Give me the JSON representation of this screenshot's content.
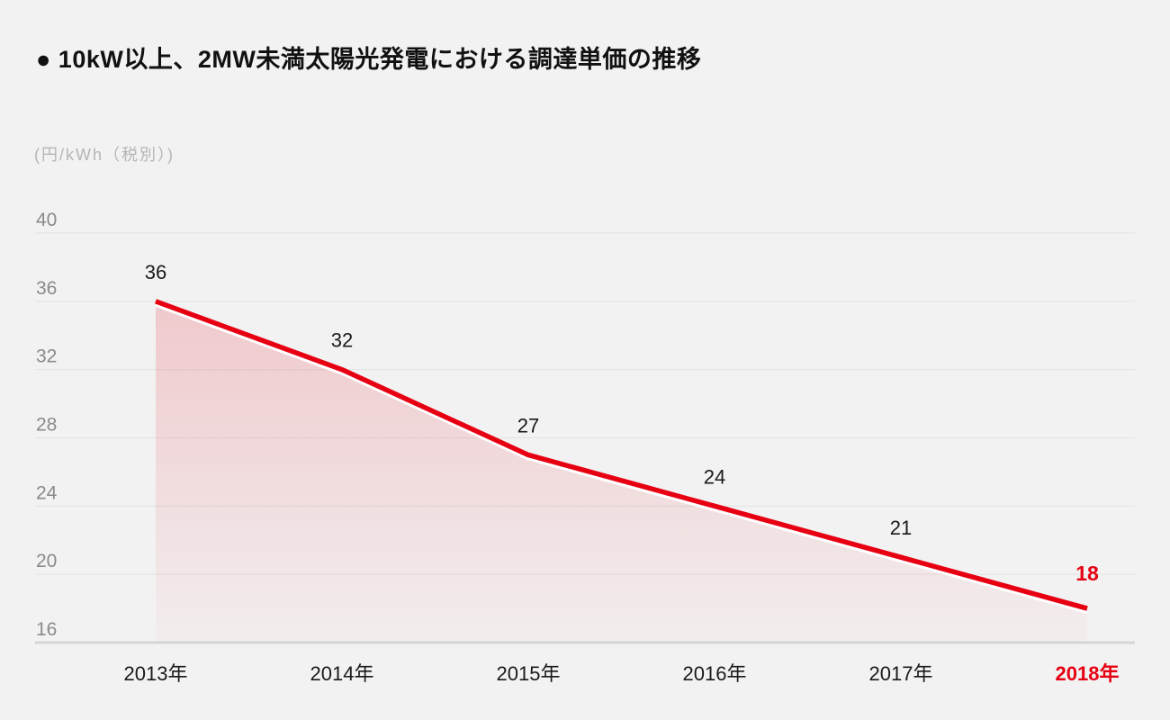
{
  "chart_data": {
    "type": "area",
    "title": "● 10kW以上、2MW未満太陽光発電における調達単価の推移",
    "unit_label": "(円/kWh（税別）)",
    "xlabel": "",
    "ylabel": "円/kWh（税別）",
    "categories": [
      "2013年",
      "2014年",
      "2015年",
      "2016年",
      "2017年",
      "2018年"
    ],
    "values": [
      36,
      32,
      27,
      24,
      21,
      18
    ],
    "yticks": [
      40,
      36,
      32,
      28,
      24,
      20,
      16
    ],
    "ylim": [
      16,
      40
    ],
    "grid": true,
    "legend": false,
    "highlight_index": 5,
    "highlight_category": "2018年",
    "highlight_value": 18,
    "colors": {
      "background": "#f2f2f2",
      "title_text": "#111111",
      "unit_text": "#b5b5b5",
      "tick_text": "#8a8a8a",
      "category_text": "#1a1a1a",
      "value_label_text": "#1a1a1a",
      "accent_red": "#e60012",
      "gridline": "#e2e2e2",
      "axis_line": "#d6d6d6",
      "line_edge_white": "#ffffff",
      "fill_top": "rgba(230,0,18,0.17)",
      "fill_bottom": "rgba(230,0,18,0.02)"
    }
  }
}
